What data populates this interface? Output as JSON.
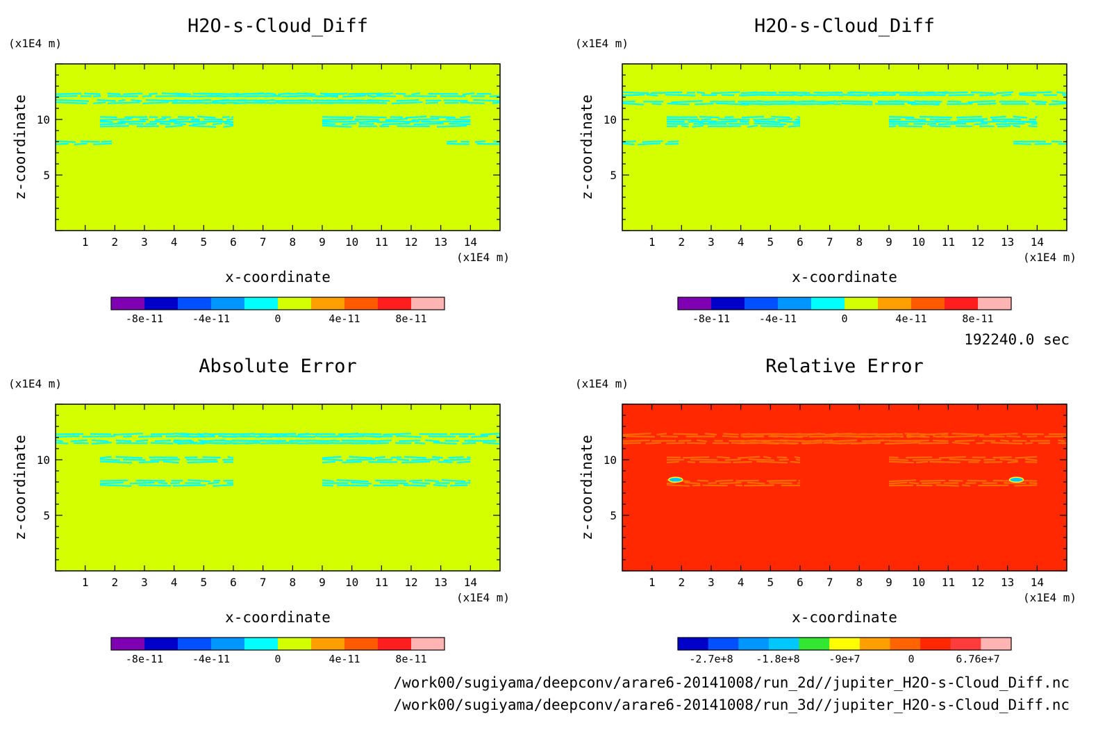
{
  "chart_data": [
    {
      "type": "heatmap",
      "title": "H2O-s-Cloud_Diff",
      "xlabel": "x-coordinate",
      "ylabel": "z-coordinate",
      "x_unit": "(x1E4 m)",
      "y_unit": "(x1E4 m)",
      "xlim": [
        0,
        15
      ],
      "ylim": [
        0,
        15
      ],
      "x_ticks": [
        "1",
        "2",
        "3",
        "4",
        "5",
        "6",
        "7",
        "8",
        "9",
        "10",
        "11",
        "12",
        "13",
        "14"
      ],
      "y_ticks": [
        "5",
        "10"
      ],
      "background_color": "#d4ff00",
      "contour_color": "#00ffff",
      "band_centers_z": [
        12.2,
        11.6,
        10.0,
        9.6,
        7.9
      ],
      "colorbar": {
        "colors": [
          "#7f00b2",
          "#0000c8",
          "#0050ff",
          "#0096ff",
          "#00ffff",
          "#d4ff00",
          "#ffa000",
          "#ff5a00",
          "#ff1e1e",
          "#ffb4b4"
        ],
        "labels": [
          "-8e-11",
          "-4e-11",
          "0",
          "4e-11",
          "8e-11"
        ]
      }
    },
    {
      "type": "heatmap",
      "title": "H2O-s-Cloud_Diff",
      "xlabel": "x-coordinate",
      "ylabel": "z-coordinate",
      "x_unit": "(x1E4 m)",
      "y_unit": "(x1E4 m)",
      "xlim": [
        0,
        15
      ],
      "ylim": [
        0,
        15
      ],
      "x_ticks": [
        "1",
        "2",
        "3",
        "4",
        "5",
        "6",
        "7",
        "8",
        "9",
        "10",
        "11",
        "12",
        "13",
        "14"
      ],
      "y_ticks": [
        "5",
        "10"
      ],
      "background_color": "#d4ff00",
      "contour_color": "#00ffff",
      "band_centers_z": [
        12.3,
        11.5,
        10.0,
        9.6,
        7.9
      ],
      "colorbar": {
        "colors": [
          "#7f00b2",
          "#0000c8",
          "#0050ff",
          "#0096ff",
          "#00ffff",
          "#d4ff00",
          "#ffa000",
          "#ff5a00",
          "#ff1e1e",
          "#ffb4b4"
        ],
        "labels": [
          "-8e-11",
          "-4e-11",
          "0",
          "4e-11",
          "8e-11"
        ]
      }
    },
    {
      "type": "heatmap",
      "title": "Absolute Error",
      "xlabel": "x-coordinate",
      "ylabel": "z-coordinate",
      "x_unit": "(x1E4 m)",
      "y_unit": "(x1E4 m)",
      "xlim": [
        0,
        15
      ],
      "ylim": [
        0,
        15
      ],
      "x_ticks": [
        "1",
        "2",
        "3",
        "4",
        "5",
        "6",
        "7",
        "8",
        "9",
        "10",
        "11",
        "12",
        "13",
        "14"
      ],
      "y_ticks": [
        "5",
        "10"
      ],
      "background_color": "#d4ff00",
      "contour_color": "#00ffff",
      "band_centers_z": [
        12.2,
        11.6,
        10.0,
        7.9
      ],
      "colorbar": {
        "colors": [
          "#7f00b2",
          "#0000c8",
          "#0050ff",
          "#0096ff",
          "#00ffff",
          "#d4ff00",
          "#ffa000",
          "#ff5a00",
          "#ff1e1e",
          "#ffb4b4"
        ],
        "labels": [
          "-8e-11",
          "-4e-11",
          "0",
          "4e-11",
          "8e-11"
        ]
      }
    },
    {
      "type": "heatmap",
      "title": "Relative Error",
      "xlabel": "x-coordinate",
      "ylabel": "z-coordinate",
      "x_unit": "(x1E4 m)",
      "y_unit": "(x1E4 m)",
      "xlim": [
        0,
        15
      ],
      "ylim": [
        0,
        15
      ],
      "x_ticks": [
        "1",
        "2",
        "3",
        "4",
        "5",
        "6",
        "7",
        "8",
        "9",
        "10",
        "11",
        "12",
        "13",
        "14"
      ],
      "y_ticks": [
        "5",
        "10"
      ],
      "background_color": "#ff2800",
      "contour_color": "#ff6a00",
      "band_centers_z": [
        12.2,
        11.6,
        10.0,
        7.9
      ],
      "spot_x": [
        1.8,
        13.3
      ],
      "spot_z": 8.2,
      "colorbar": {
        "colors": [
          "#0000c8",
          "#0050ff",
          "#0096ff",
          "#00c8ff",
          "#32e632",
          "#ffff00",
          "#ffa000",
          "#ff6400",
          "#ff2800",
          "#ff3c3c",
          "#ffb4b4"
        ],
        "labels": [
          "-2.7e+8",
          "-1.8e+8",
          "-9e+7",
          "0",
          "6.76e+7"
        ]
      }
    }
  ],
  "time_label": "192240.0 sec",
  "file_paths": [
    "/work00/sugiyama/deepconv/arare6-20141008/run_2d//jupiter_H2O-s-Cloud_Diff.nc",
    "/work00/sugiyama/deepconv/arare6-20141008/run_3d//jupiter_H2O-s-Cloud_Diff.nc"
  ]
}
